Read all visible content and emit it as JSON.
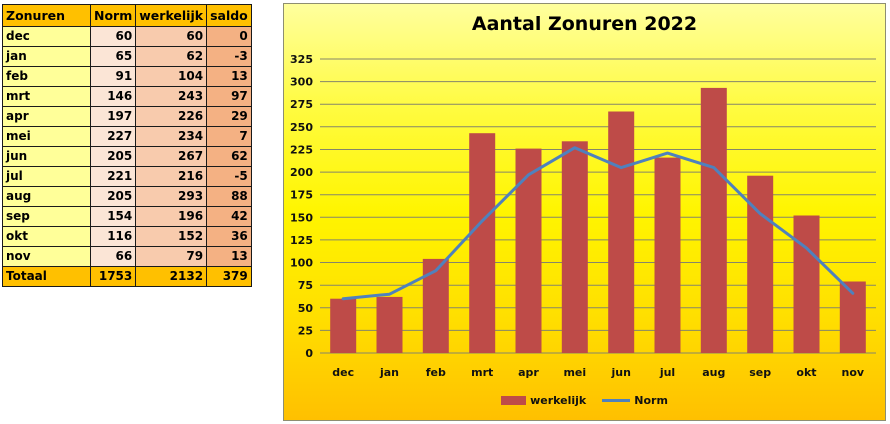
{
  "table": {
    "headers": [
      "Zonuren",
      "Norm",
      "werkelijk",
      "saldo"
    ],
    "rows": [
      {
        "month": "dec",
        "norm": 60,
        "werkelijk": 60,
        "saldo": 0
      },
      {
        "month": "jan",
        "norm": 65,
        "werkelijk": 62,
        "saldo": -3
      },
      {
        "month": "feb",
        "norm": 91,
        "werkelijk": 104,
        "saldo": 13
      },
      {
        "month": "mrt",
        "norm": 146,
        "werkelijk": 243,
        "saldo": 97
      },
      {
        "month": "apr",
        "norm": 197,
        "werkelijk": 226,
        "saldo": 29
      },
      {
        "month": "mei",
        "norm": 227,
        "werkelijk": 234,
        "saldo": 7
      },
      {
        "month": "jun",
        "norm": 205,
        "werkelijk": 267,
        "saldo": 62
      },
      {
        "month": "jul",
        "norm": 221,
        "werkelijk": 216,
        "saldo": -5
      },
      {
        "month": "aug",
        "norm": 205,
        "werkelijk": 293,
        "saldo": 88
      },
      {
        "month": "sep",
        "norm": 154,
        "werkelijk": 196,
        "saldo": 42
      },
      {
        "month": "okt",
        "norm": 116,
        "werkelijk": 152,
        "saldo": 36
      },
      {
        "month": "nov",
        "norm": 66,
        "werkelijk": 79,
        "saldo": 13
      }
    ],
    "total": {
      "label": "Totaal",
      "norm": 1753,
      "werkelijk": 2132,
      "saldo": 379
    }
  },
  "chart_data": {
    "type": "bar",
    "title": "Aantal Zonuren 2022",
    "categories": [
      "dec",
      "jan",
      "feb",
      "mrt",
      "apr",
      "mei",
      "jun",
      "jul",
      "aug",
      "sep",
      "okt",
      "nov"
    ],
    "series": [
      {
        "name": "werkelijk",
        "type": "bar",
        "color": "#BE4B48",
        "values": [
          60,
          62,
          104,
          243,
          226,
          234,
          267,
          216,
          293,
          196,
          152,
          79
        ]
      },
      {
        "name": "Norm",
        "type": "line",
        "color": "#4F81BD",
        "values": [
          60,
          65,
          91,
          146,
          197,
          227,
          205,
          221,
          205,
          154,
          116,
          66
        ]
      }
    ],
    "ylim": [
      0,
      325
    ],
    "ytick_step": 25,
    "grid": true,
    "legend_position": "bottom"
  },
  "colors": {
    "table_header_bg": "#FFC000",
    "month_col_bg": "#FFFF99",
    "norm_col_bg": "#FBE5D6",
    "werkelijk_col_bg": "#F8CBAD",
    "saldo_col_bg": "#F4B183",
    "total_row_bg": "#FFC000",
    "bar_color": "#BE4B48",
    "line_color": "#4F81BD",
    "chart_bg_top": "#FFFF9E",
    "chart_bg_bottom": "#FFC000",
    "gridline": "#85856A"
  }
}
